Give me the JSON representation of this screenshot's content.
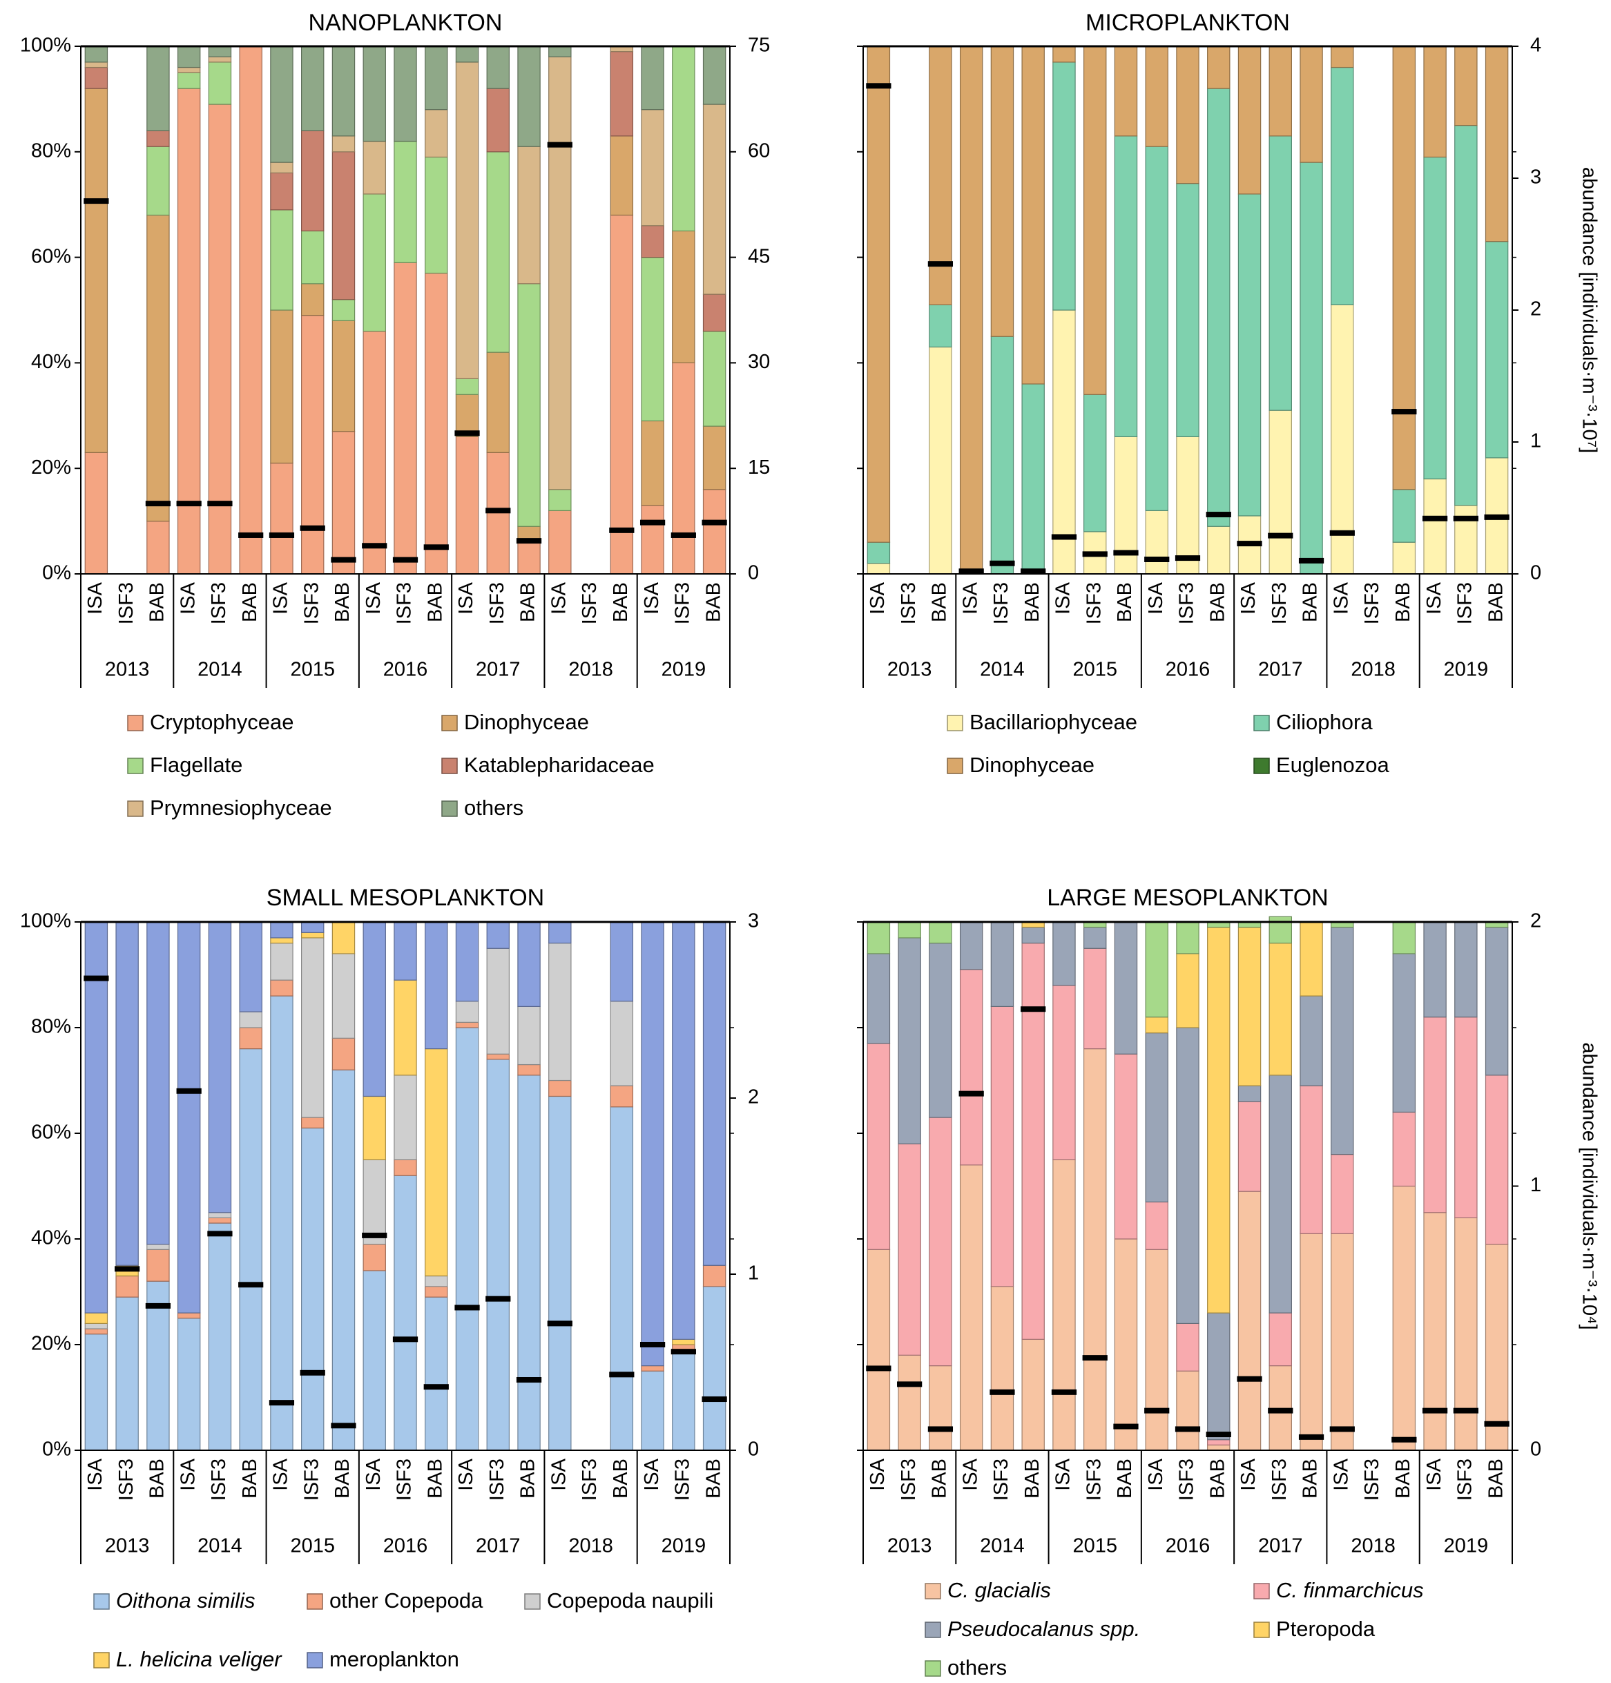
{
  "chart_data": [
    {
      "type": "bar",
      "stacked": true,
      "title": "NANOPLANKTON",
      "ylim_left": [
        0,
        100
      ],
      "left_ticks": [
        "0%",
        "20%",
        "40%",
        "60%",
        "80%",
        "100%"
      ],
      "ylim_right": [
        0,
        75
      ],
      "right_ticks": [
        "0",
        "15",
        "30",
        "45",
        "60",
        "75"
      ],
      "ylabel_right": "",
      "stations": [
        "ISA",
        "ISF3",
        "BAB",
        "ISA",
        "ISF3",
        "BAB",
        "ISA",
        "ISF3",
        "BAB",
        "ISA",
        "ISF3",
        "BAB",
        "ISA",
        "ISF3",
        "BAB",
        "ISA",
        "ISF3",
        "BAB",
        "ISA",
        "ISF3",
        "BAB"
      ],
      "years": [
        "2013",
        "2014",
        "2015",
        "2016",
        "2017",
        "2018",
        "2019"
      ],
      "series": [
        {
          "name": "Cryptophyceae",
          "color": "#f4a582",
          "values": [
            23,
            0,
            10,
            92,
            89,
            100,
            21,
            49,
            27,
            46,
            59,
            57,
            26,
            23,
            6,
            12,
            0,
            68,
            13,
            40,
            16
          ]
        },
        {
          "name": "Dinophyceae",
          "color": "#d9a76a",
          "values": [
            69,
            0,
            58,
            0,
            0,
            0,
            29,
            6,
            21,
            0,
            0,
            0,
            8,
            19,
            3,
            0,
            0,
            15,
            16,
            25,
            12
          ]
        },
        {
          "name": "Flagellate",
          "color": "#a6d98a",
          "values": [
            0,
            0,
            13,
            3,
            8,
            0,
            19,
            10,
            4,
            26,
            23,
            22,
            3,
            38,
            46,
            4,
            0,
            0,
            31,
            35,
            18
          ]
        },
        {
          "name": "Katablepharidaceae",
          "color": "#c9826f",
          "values": [
            4,
            0,
            3,
            0,
            0,
            0,
            7,
            19,
            28,
            0,
            0,
            0,
            0,
            12,
            0,
            0,
            0,
            16,
            6,
            0,
            7
          ]
        },
        {
          "name": "Prymnesiophyceae",
          "color": "#d9b88a",
          "values": [
            1,
            0,
            0,
            1,
            1,
            0,
            2,
            0,
            3,
            10,
            0,
            9,
            60,
            0,
            26,
            82,
            0,
            1,
            22,
            0,
            36
          ]
        },
        {
          "name": "others",
          "color": "#8fa888",
          "values": [
            3,
            0,
            16,
            4,
            2,
            0,
            22,
            16,
            17,
            18,
            18,
            12,
            3,
            8,
            19,
            2,
            0,
            0,
            12,
            0,
            11
          ]
        }
      ],
      "abundance": [
        53,
        null,
        10,
        10,
        10,
        5.5,
        5.5,
        6.5,
        2,
        4,
        2,
        3.8,
        20,
        9,
        4.7,
        61,
        null,
        6.2,
        7.3,
        5.5,
        7.3
      ]
    },
    {
      "type": "bar",
      "stacked": true,
      "title": "MICROPLANKTON",
      "ylim_left": [
        0,
        100
      ],
      "left_ticks": [
        "",
        "",
        "",
        "",
        "",
        ""
      ],
      "ylim_right": [
        0,
        4
      ],
      "right_ticks": [
        "0",
        "1",
        "2",
        "3",
        "4"
      ],
      "ylabel_right": "abundance [individuals·m⁻³·10⁷]",
      "stations": [
        "ISA",
        "ISF3",
        "BAB",
        "ISA",
        "ISF3",
        "BAB",
        "ISA",
        "ISF3",
        "BAB",
        "ISA",
        "ISF3",
        "BAB",
        "ISA",
        "ISF3",
        "BAB",
        "ISA",
        "ISF3",
        "BAB",
        "ISA",
        "ISF3",
        "BAB"
      ],
      "years": [
        "2013",
        "2014",
        "2015",
        "2016",
        "2017",
        "2018",
        "2019"
      ],
      "series": [
        {
          "name": "Bacillariophyceae",
          "color": "#fff3b0",
          "values": [
            2,
            0,
            43,
            0,
            0,
            0,
            50,
            8,
            26,
            12,
            26,
            9,
            11,
            31,
            0,
            51,
            0,
            6,
            18,
            13,
            22
          ]
        },
        {
          "name": "Ciliophora",
          "color": "#7fd1ae",
          "values": [
            4,
            0,
            8,
            0,
            45,
            36,
            47,
            26,
            57,
            69,
            48,
            83,
            61,
            52,
            78,
            45,
            0,
            10,
            61,
            72,
            41
          ]
        },
        {
          "name": "Dinophyceae",
          "color": "#d9a76a",
          "values": [
            94,
            0,
            49,
            100,
            55,
            64,
            3,
            66,
            17,
            19,
            26,
            8,
            28,
            17,
            22,
            4,
            0,
            84,
            21,
            15,
            37
          ]
        },
        {
          "name": "Euglenozoa",
          "color": "#3e7a2e",
          "values": [
            0,
            0,
            0,
            0,
            0,
            0,
            0,
            0,
            0,
            0,
            0,
            0,
            0,
            0,
            0,
            0,
            0,
            0,
            0,
            0,
            0
          ]
        }
      ],
      "abundance": [
        3.7,
        null,
        2.35,
        0.02,
        0.08,
        0.02,
        0.28,
        0.15,
        0.16,
        0.11,
        0.12,
        0.45,
        0.23,
        0.29,
        0.1,
        0.31,
        null,
        1.23,
        0.42,
        0.42,
        0.43
      ]
    },
    {
      "type": "bar",
      "stacked": true,
      "title": "SMALL MESOPLANKTON",
      "ylim_left": [
        0,
        100
      ],
      "left_ticks": [
        "0%",
        "20%",
        "40%",
        "60%",
        "80%",
        "100%"
      ],
      "ylim_right": [
        0,
        3
      ],
      "right_ticks": [
        "0",
        "1",
        "2",
        "3"
      ],
      "ylabel_right": "",
      "stations": [
        "ISA",
        "ISF3",
        "BAB",
        "ISA",
        "ISF3",
        "BAB",
        "ISA",
        "ISF3",
        "BAB",
        "ISA",
        "ISF3",
        "BAB",
        "ISA",
        "ISF3",
        "BAB",
        "ISA",
        "ISF3",
        "BAB",
        "ISA",
        "ISF3",
        "BAB"
      ],
      "years": [
        "2013",
        "2014",
        "2015",
        "2016",
        "2017",
        "2018",
        "2019"
      ],
      "series": [
        {
          "name": "Oithona similis",
          "color": "#a7c8ea",
          "values": [
            22,
            29,
            32,
            25,
            43,
            76,
            86,
            61,
            72,
            34,
            52,
            29,
            80,
            74,
            71,
            67,
            0,
            65,
            15,
            19,
            31
          ]
        },
        {
          "name": "other Copepoda",
          "color": "#f4a582",
          "values": [
            1,
            4,
            6,
            1,
            1,
            4,
            3,
            2,
            6,
            5,
            3,
            2,
            1,
            1,
            2,
            3,
            0,
            4,
            1,
            1,
            4
          ]
        },
        {
          "name": "Copepoda naupili",
          "color": "#cfcfcf",
          "values": [
            1,
            0,
            1,
            0,
            1,
            3,
            7,
            34,
            16,
            16,
            16,
            2,
            4,
            20,
            11,
            26,
            0,
            16,
            0,
            0,
            0
          ]
        },
        {
          "name": "L. helicina veliger",
          "color": "#ffd466",
          "values": [
            2,
            2,
            0,
            0,
            0,
            0,
            1,
            1,
            6,
            12,
            18,
            43,
            0,
            0,
            0,
            0,
            0,
            0,
            0,
            1,
            0
          ]
        },
        {
          "name": "meroplankton",
          "color": "#8aa0dd",
          "values": [
            74,
            65,
            61,
            74,
            55,
            17,
            3,
            2,
            0,
            33,
            11,
            24,
            15,
            5,
            16,
            4,
            0,
            15,
            84,
            79,
            65
          ]
        }
      ],
      "abundance": [
        2.68,
        1.03,
        0.82,
        2.04,
        1.23,
        0.94,
        0.27,
        0.44,
        0.14,
        1.22,
        0.63,
        0.36,
        0.81,
        0.86,
        0.4,
        0.72,
        null,
        0.43,
        0.6,
        0.56,
        0.29
      ]
    },
    {
      "type": "bar",
      "stacked": true,
      "title": "LARGE MESOPLANKTON",
      "ylim_left": [
        0,
        100
      ],
      "left_ticks": [
        "",
        "",
        "",
        "",
        "",
        ""
      ],
      "ylim_right": [
        0,
        2
      ],
      "right_ticks": [
        "0",
        "1",
        "2"
      ],
      "ylabel_right": "abundance [individuals·m⁻³·10⁴]",
      "stations": [
        "ISA",
        "ISF3",
        "BAB",
        "ISA",
        "ISF3",
        "BAB",
        "ISA",
        "ISF3",
        "BAB",
        "ISA",
        "ISF3",
        "BAB",
        "ISA",
        "ISF3",
        "BAB",
        "ISA",
        "ISF3",
        "BAB",
        "ISA",
        "ISF3",
        "BAB"
      ],
      "years": [
        "2013",
        "2014",
        "2015",
        "2016",
        "2017",
        "2018",
        "2019"
      ],
      "series": [
        {
          "name": "C. glacialis",
          "color": "#f7c4a2",
          "values": [
            38,
            18,
            16,
            54,
            31,
            21,
            55,
            76,
            40,
            38,
            15,
            1,
            49,
            16,
            41,
            41,
            0,
            50,
            45,
            44,
            39
          ]
        },
        {
          "name": "C. finmarchicus",
          "color": "#f8aaae",
          "values": [
            39,
            40,
            47,
            37,
            53,
            75,
            33,
            19,
            35,
            9,
            9,
            1,
            17,
            10,
            28,
            15,
            0,
            14,
            37,
            38,
            32
          ]
        },
        {
          "name": "Pseudocalanus spp.",
          "color": "#9aa5b7",
          "values": [
            17,
            39,
            33,
            9,
            16,
            3,
            12,
            4,
            25,
            32,
            56,
            24,
            3,
            45,
            17,
            43,
            0,
            30,
            18,
            18,
            28
          ]
        },
        {
          "name": "Pteropoda",
          "color": "#ffd466",
          "values": [
            0,
            0,
            0,
            0,
            0,
            1,
            0,
            0,
            0,
            3,
            14,
            73,
            30,
            25,
            14,
            0,
            0,
            0,
            0,
            0,
            0
          ]
        },
        {
          "name": "others",
          "color": "#a6d98a",
          "values": [
            6,
            3,
            4,
            0,
            0,
            0,
            0,
            1,
            0,
            18,
            6,
            1,
            1,
            5,
            0,
            1,
            0,
            6,
            0,
            0,
            1
          ]
        }
      ],
      "abundance": [
        0.31,
        0.25,
        0.08,
        1.35,
        0.22,
        1.67,
        0.22,
        0.35,
        0.09,
        0.15,
        0.08,
        0.06,
        0.27,
        0.15,
        0.05,
        0.08,
        null,
        0.04,
        0.15,
        0.15,
        0.1
      ]
    }
  ],
  "legends": [
    [
      "Cryptophyceae",
      "Dinophyceae",
      "Flagellate",
      "Katablepharidaceae",
      "Prymnesiophyceae",
      "others"
    ],
    [
      "Bacillariophyceae",
      "Ciliophora",
      "Dinophyceae",
      "Euglenozoa"
    ],
    [
      "Oithona similis",
      "other Copepoda",
      "Copepoda naupili",
      "L. helicina veliger",
      "meroplankton"
    ],
    [
      "C. glacialis",
      "C. finmarchicus",
      "Pseudocalanus spp.",
      "Pteropoda",
      "others"
    ]
  ],
  "italic_legend_entries": [
    "Oithona similis",
    "L. helicina veliger",
    "C. glacialis",
    "C. finmarchicus",
    "Pseudocalanus spp."
  ]
}
